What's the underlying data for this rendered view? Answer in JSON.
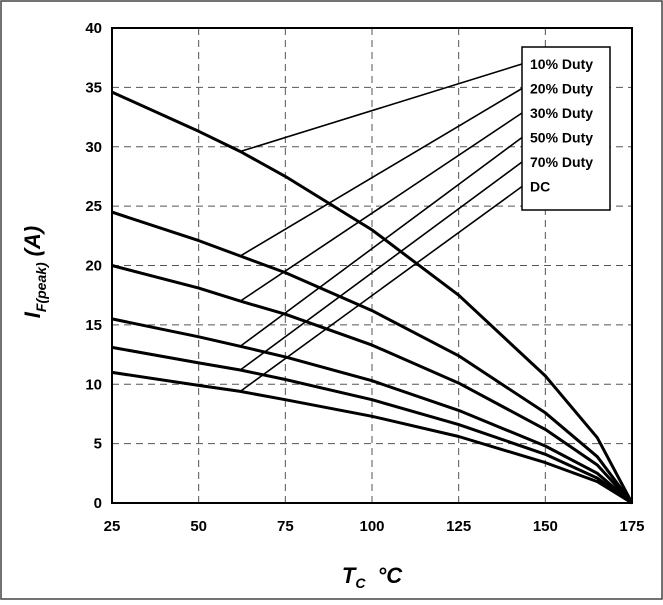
{
  "chart_data": {
    "type": "line",
    "title": "",
    "xlabel": "T",
    "xlabel_sub": "C",
    "xlabel_unit": "°C",
    "ylabel": "I",
    "ylabel_sub": "F(peak)",
    "ylabel_unit": "(A)",
    "xlim": [
      25,
      175
    ],
    "ylim": [
      0,
      40
    ],
    "x_ticks": [
      25,
      50,
      75,
      100,
      125,
      150,
      175
    ],
    "y_ticks": [
      0,
      5,
      10,
      15,
      20,
      25,
      30,
      35,
      40
    ],
    "grid": "dashed",
    "legend_placement": "top-right",
    "series": [
      {
        "name": "10% Duty",
        "x": [
          25,
          50,
          62,
          75,
          100,
          125,
          150,
          165,
          175
        ],
        "y": [
          34.6,
          31.3,
          29.6,
          27.5,
          23.0,
          17.5,
          10.7,
          5.5,
          0
        ]
      },
      {
        "name": "20% Duty",
        "x": [
          25,
          50,
          62,
          75,
          100,
          125,
          150,
          165,
          175
        ],
        "y": [
          24.5,
          22.1,
          20.8,
          19.4,
          16.2,
          12.4,
          7.6,
          3.9,
          0
        ]
      },
      {
        "name": "30% Duty",
        "x": [
          25,
          50,
          62,
          75,
          100,
          125,
          150,
          165,
          175
        ],
        "y": [
          20.0,
          18.1,
          17.0,
          15.9,
          13.3,
          10.1,
          6.2,
          3.2,
          0
        ]
      },
      {
        "name": "50% Duty",
        "x": [
          25,
          50,
          62,
          75,
          100,
          125,
          150,
          165,
          175
        ],
        "y": [
          15.5,
          14.0,
          13.2,
          12.3,
          10.3,
          7.8,
          4.8,
          2.5,
          0
        ]
      },
      {
        "name": "70% Duty",
        "x": [
          25,
          50,
          62,
          75,
          100,
          125,
          150,
          165,
          175
        ],
        "y": [
          13.1,
          11.8,
          11.2,
          10.4,
          8.7,
          6.6,
          4.1,
          2.1,
          0
        ]
      },
      {
        "name": "DC",
        "x": [
          25,
          50,
          62,
          75,
          100,
          125,
          150,
          165,
          175
        ],
        "y": [
          11.0,
          9.9,
          9.4,
          8.7,
          7.3,
          5.6,
          3.4,
          1.8,
          0
        ]
      }
    ],
    "leader_anchor_x": 62,
    "line_color": "#000000",
    "background": "#ffffff"
  }
}
